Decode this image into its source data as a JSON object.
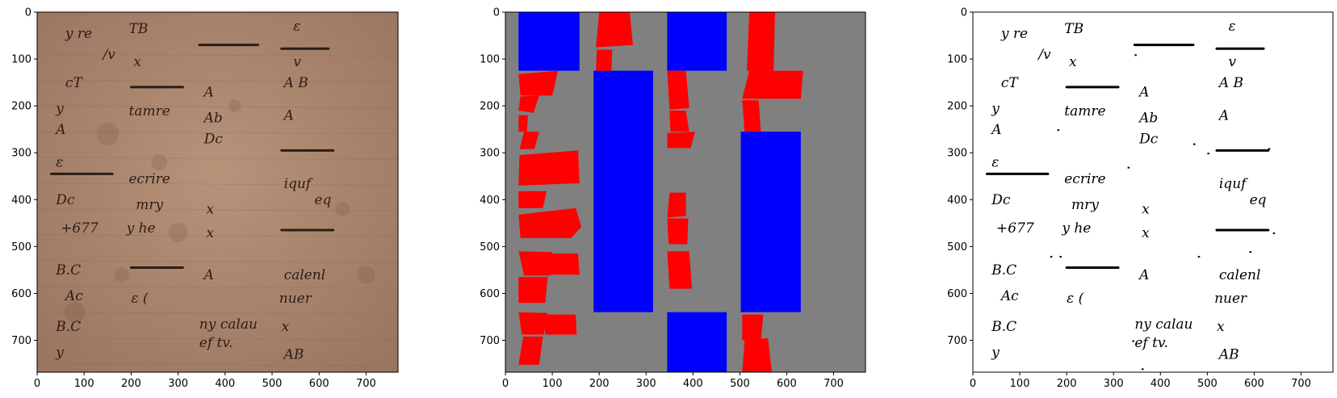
{
  "figure": {
    "panels": [
      {
        "id": "original",
        "content": "handwritten-manuscript-photo",
        "xlim": [
          0,
          768
        ],
        "ylim": [
          768,
          0
        ],
        "xticks": [
          0,
          100,
          200,
          300,
          400,
          500,
          600,
          700
        ],
        "yticks": [
          0,
          100,
          200,
          300,
          400,
          500,
          600,
          700
        ],
        "colors": {
          "paper": "#a47f68",
          "paper_light": "#b8937a",
          "ink": "#2c1d15"
        },
        "handwriting_samples": [
          {
            "text": "y re",
            "x": 60,
            "y": 55
          },
          {
            "text": "TB",
            "x": 195,
            "y": 45
          },
          {
            "text": "ε",
            "x": 545,
            "y": 40
          },
          {
            "text": "/v",
            "x": 140,
            "y": 100
          },
          {
            "text": "x",
            "x": 205,
            "y": 115
          },
          {
            "text": "v",
            "x": 545,
            "y": 115
          },
          {
            "text": "cT",
            "x": 60,
            "y": 160
          },
          {
            "text": "A",
            "x": 355,
            "y": 180
          },
          {
            "text": "A B",
            "x": 525,
            "y": 160
          },
          {
            "text": "y",
            "x": 40,
            "y": 215
          },
          {
            "text": "tamre",
            "x": 195,
            "y": 220
          },
          {
            "text": "Ab",
            "x": 355,
            "y": 235
          },
          {
            "text": "A",
            "x": 525,
            "y": 230
          },
          {
            "text": "A",
            "x": 40,
            "y": 260
          },
          {
            "text": "Dc",
            "x": 355,
            "y": 280
          },
          {
            "text": "ecrire",
            "x": 195,
            "y": 365
          },
          {
            "text": "iquf",
            "x": 525,
            "y": 375
          },
          {
            "text": "ε",
            "x": 40,
            "y": 330
          },
          {
            "text": "eq",
            "x": 590,
            "y": 410
          },
          {
            "text": "Dc",
            "x": 40,
            "y": 410
          },
          {
            "text": "mry",
            "x": 210,
            "y": 420
          },
          {
            "text": "x",
            "x": 360,
            "y": 430
          },
          {
            "text": "+677",
            "x": 50,
            "y": 470
          },
          {
            "text": "y he",
            "x": 190,
            "y": 470
          },
          {
            "text": "x",
            "x": 360,
            "y": 480
          },
          {
            "text": "B.C",
            "x": 40,
            "y": 560
          },
          {
            "text": "A",
            "x": 355,
            "y": 570
          },
          {
            "text": "calenl",
            "x": 525,
            "y": 570
          },
          {
            "text": "Ac",
            "x": 60,
            "y": 615
          },
          {
            "text": "ε (",
            "x": 200,
            "y": 620
          },
          {
            "text": "nuer",
            "x": 515,
            "y": 620
          },
          {
            "text": "B.C",
            "x": 40,
            "y": 680
          },
          {
            "text": "ny calau",
            "x": 345,
            "y": 675
          },
          {
            "text": "x",
            "x": 520,
            "y": 680
          },
          {
            "text": "ef tv.",
            "x": 345,
            "y": 715
          },
          {
            "text": "AB",
            "x": 525,
            "y": 740
          },
          {
            "text": "y",
            "x": 40,
            "y": 735
          }
        ],
        "strike_lines": [
          {
            "x1": 345,
            "y1": 70,
            "x2": 470,
            "y2": 70
          },
          {
            "x1": 520,
            "y1": 78,
            "x2": 620,
            "y2": 78
          },
          {
            "x1": 200,
            "y1": 160,
            "x2": 310,
            "y2": 160
          },
          {
            "x1": 520,
            "y1": 295,
            "x2": 630,
            "y2": 295
          },
          {
            "x1": 30,
            "y1": 345,
            "x2": 160,
            "y2": 345
          },
          {
            "x1": 520,
            "y1": 465,
            "x2": 630,
            "y2": 465
          },
          {
            "x1": 200,
            "y1": 545,
            "x2": 310,
            "y2": 545
          }
        ]
      },
      {
        "id": "segmentation",
        "content": "segmentation-mask",
        "xlim": [
          0,
          768
        ],
        "ylim": [
          768,
          0
        ],
        "xticks": [
          0,
          100,
          200,
          300,
          400,
          500,
          600,
          700
        ],
        "yticks": [
          0,
          100,
          200,
          300,
          400,
          500,
          600,
          700
        ],
        "colors": {
          "background": "#808080",
          "column": "#0000ff",
          "line": "#ff0000"
        },
        "blue_rects": [
          {
            "x0": 28,
            "x1": 158,
            "y0": 0,
            "y1": 125
          },
          {
            "x0": 188,
            "x1": 315,
            "y0": 125,
            "y1": 640
          },
          {
            "x0": 345,
            "x1": 472,
            "y0": 0,
            "y1": 125
          },
          {
            "x0": 345,
            "x1": 472,
            "y0": 640,
            "y1": 768
          },
          {
            "x0": 502,
            "x1": 630,
            "y0": 255,
            "y1": 640
          }
        ],
        "red_polygons": [
          [
            [
              200,
              0
            ],
            [
              265,
              0
            ],
            [
              272,
              70
            ],
            [
              193,
              75
            ]
          ],
          [
            [
              195,
              80
            ],
            [
              228,
              80
            ],
            [
              226,
              125
            ],
            [
              193,
              125
            ]
          ],
          [
            [
              28,
              132
            ],
            [
              112,
              125
            ],
            [
              100,
              178
            ],
            [
              32,
              178
            ]
          ],
          [
            [
              32,
              180
            ],
            [
              72,
              178
            ],
            [
              60,
              215
            ],
            [
              28,
              210
            ]
          ],
          [
            [
              28,
              220
            ],
            [
              48,
              220
            ],
            [
              46,
              255
            ],
            [
              28,
              255
            ]
          ],
          [
            [
              40,
              255
            ],
            [
              72,
              255
            ],
            [
              62,
              292
            ],
            [
              30,
              292
            ]
          ],
          [
            [
              30,
              305
            ],
            [
              155,
              295
            ],
            [
              158,
              365
            ],
            [
              28,
              370
            ]
          ],
          [
            [
              28,
              382
            ],
            [
              88,
              382
            ],
            [
              80,
              418
            ],
            [
              28,
              418
            ]
          ],
          [
            [
              28,
              432
            ],
            [
              150,
              418
            ],
            [
              162,
              458
            ],
            [
              140,
              482
            ],
            [
              32,
              482
            ]
          ],
          [
            [
              28,
              510
            ],
            [
              100,
              512
            ],
            [
              95,
              562
            ],
            [
              40,
              562
            ]
          ],
          [
            [
              95,
              515
            ],
            [
              155,
              515
            ],
            [
              158,
              560
            ],
            [
              95,
              560
            ]
          ],
          [
            [
              28,
              565
            ],
            [
              90,
              565
            ],
            [
              85,
              620
            ],
            [
              28,
              620
            ]
          ],
          [
            [
              28,
              640
            ],
            [
              90,
              642
            ],
            [
              82,
              688
            ],
            [
              35,
              688
            ]
          ],
          [
            [
              82,
              645
            ],
            [
              150,
              645
            ],
            [
              152,
              688
            ],
            [
              85,
              688
            ]
          ],
          [
            [
              38,
              692
            ],
            [
              80,
              692
            ],
            [
              72,
              752
            ],
            [
              28,
              752
            ]
          ],
          [
            [
              345,
              125
            ],
            [
              385,
              125
            ],
            [
              392,
              205
            ],
            [
              350,
              208
            ]
          ],
          [
            [
              350,
              210
            ],
            [
              385,
              210
            ],
            [
              392,
              255
            ],
            [
              352,
              255
            ]
          ],
          [
            [
              345,
              258
            ],
            [
              405,
              255
            ],
            [
              395,
              290
            ],
            [
              345,
              290
            ]
          ],
          [
            [
              350,
              385
            ],
            [
              385,
              385
            ],
            [
              385,
              435
            ],
            [
              345,
              438
            ]
          ],
          [
            [
              345,
              440
            ],
            [
              390,
              440
            ],
            [
              388,
              495
            ],
            [
              348,
              495
            ]
          ],
          [
            [
              345,
              510
            ],
            [
              392,
              510
            ],
            [
              398,
              590
            ],
            [
              350,
              590
            ]
          ],
          [
            [
              520,
              0
            ],
            [
              575,
              0
            ],
            [
              572,
              125
            ],
            [
              515,
              125
            ]
          ],
          [
            [
              520,
              125
            ],
            [
              635,
              125
            ],
            [
              630,
              185
            ],
            [
              505,
              185
            ]
          ],
          [
            [
              505,
              188
            ],
            [
              540,
              188
            ],
            [
              545,
              255
            ],
            [
              510,
              255
            ]
          ],
          [
            [
              505,
              645
            ],
            [
              550,
              645
            ],
            [
              545,
              700
            ],
            [
              505,
              700
            ]
          ],
          [
            [
              510,
              700
            ],
            [
              560,
              695
            ],
            [
              568,
              768
            ],
            [
              505,
              768
            ]
          ]
        ]
      },
      {
        "id": "binarized",
        "content": "binarized-handwriting",
        "xlim": [
          0,
          768
        ],
        "ylim": [
          768,
          0
        ],
        "xticks": [
          0,
          100,
          200,
          300,
          400,
          500,
          600,
          700
        ],
        "yticks": [
          0,
          100,
          200,
          300,
          400,
          500,
          600,
          700
        ],
        "colors": {
          "background": "#ffffff",
          "ink": "#000000"
        }
      }
    ]
  }
}
